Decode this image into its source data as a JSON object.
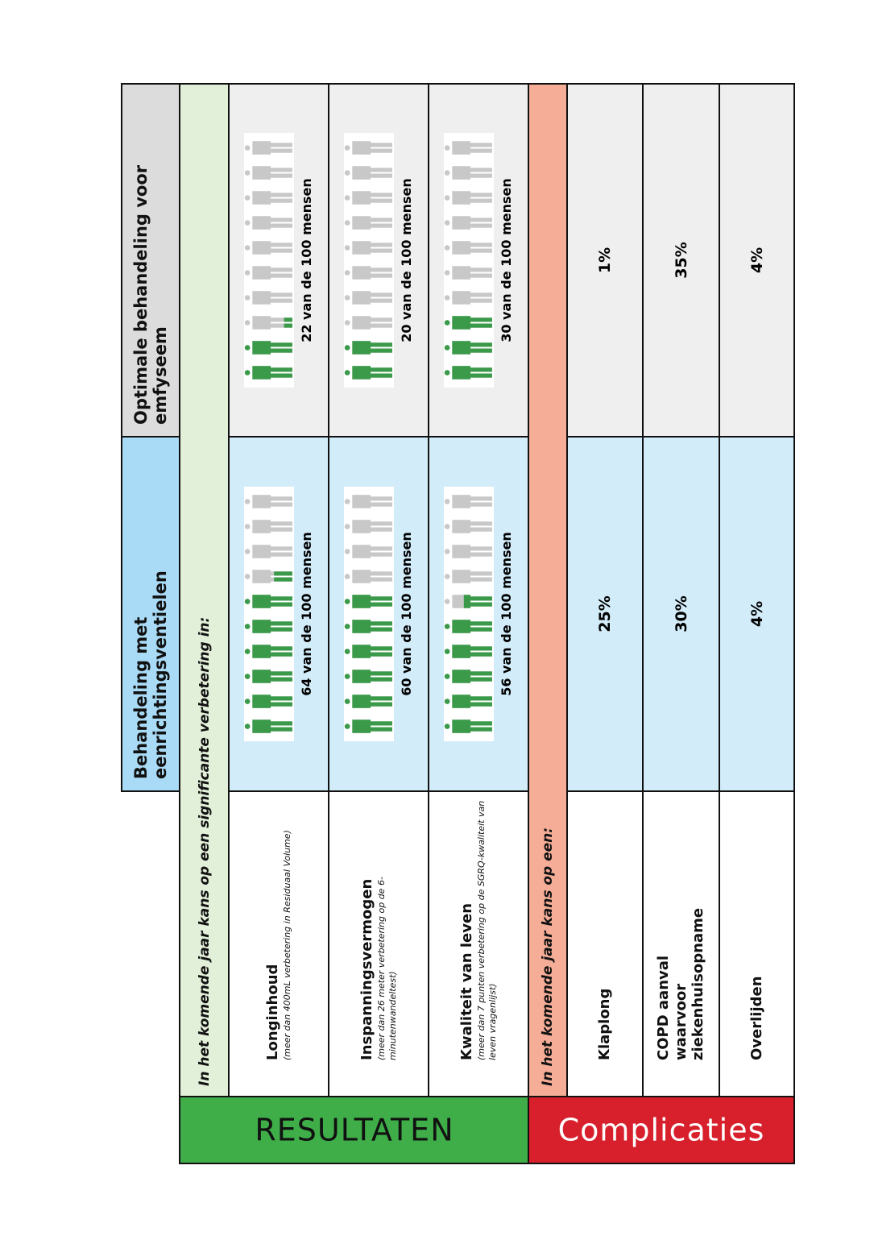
{
  "colors": {
    "treatment_header": "#a9dbf6",
    "treatment_cell": "#d3ecfa",
    "optimal_header": "#dcdcdc",
    "optimal_cell": "#efefef",
    "results_sub": "#e2efd9",
    "complications_sub": "#f6ad98",
    "results_label": "#3fae49",
    "complications_label": "#d7202b",
    "icon_filled": "#3a9a4a",
    "icon_empty": "#c8c8c8"
  },
  "headers": {
    "treatment": "Behandeling met eenrichtingsventielen",
    "optimal": "Optimale behandeling voor emfyseem"
  },
  "results": {
    "label": "RESULTATEN",
    "intro": "In het komende jaar kans op een significante verbetering in:",
    "rows": [
      {
        "title": "Longinhoud",
        "subtitle": "(meer dan 400mL verbetering in Residuaal Volume)",
        "treatment": {
          "value": 64,
          "text": "64 van de 100 mensen"
        },
        "optimal": {
          "value": 22,
          "text": "22 van de 100 mensen"
        }
      },
      {
        "title": "Inspanningsvermogen",
        "subtitle": "(meer dan 26 meter verbetering op de 6-minutenwandeltest)",
        "treatment": {
          "value": 60,
          "text": "60 van de 100 mensen"
        },
        "optimal": {
          "value": 20,
          "text": "20 van de 100 mensen"
        }
      },
      {
        "title": "Kwaliteit van leven",
        "subtitle": "(meer dan 7 punten verbetering op de SGRQ-kwaliteit van leven vragenlijst)",
        "treatment": {
          "value": 56,
          "text": "56 van de 100 mensen"
        },
        "optimal": {
          "value": 30,
          "text": "30 van de 100 mensen"
        }
      }
    ]
  },
  "complications": {
    "label": "Complicaties",
    "intro": "In het komende jaar kans op een:",
    "rows": [
      {
        "title": "Klaplong",
        "treatment": "25%",
        "optimal": "1%"
      },
      {
        "title": "COPD aanval waarvoor ziekenhuisopname",
        "treatment": "30%",
        "optimal": "35%"
      },
      {
        "title": "Overlijden",
        "treatment": "4%",
        "optimal": "4%"
      }
    ]
  }
}
